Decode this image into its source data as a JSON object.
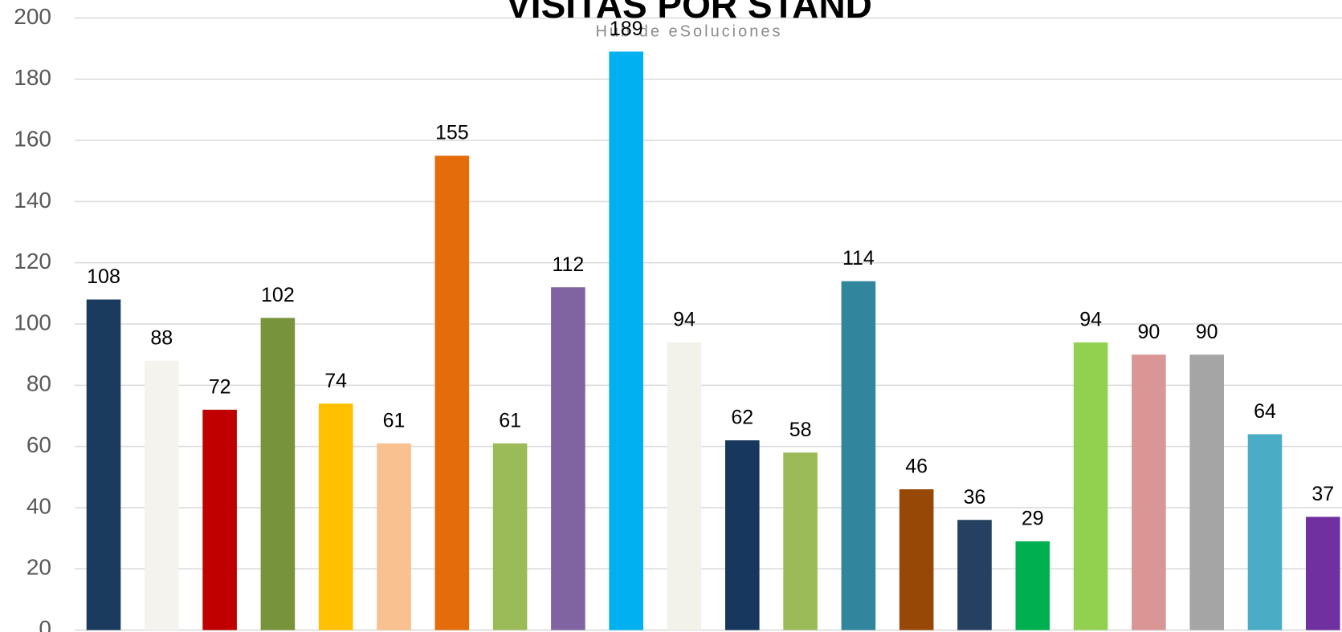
{
  "chart_data": {
    "type": "bar",
    "title": "VISITAS POR STAND",
    "subtitle": "Hub de eSoluciones",
    "values": [
      108,
      88,
      72,
      102,
      74,
      61,
      155,
      61,
      112,
      189,
      94,
      62,
      58,
      114,
      46,
      36,
      29,
      94,
      90,
      90,
      64,
      37
    ],
    "colors": [
      "#1a3a5e",
      "#f5f3ee",
      "#c00000",
      "#77933c",
      "#ffc000",
      "#f9c090",
      "#e46c0a",
      "#9bbb59",
      "#8064a2",
      "#00b0f0",
      "#f2f2ea",
      "#17375e",
      "#9bbb59",
      "#31859c",
      "#974806",
      "#254061",
      "#00b050",
      "#92d050",
      "#d99694",
      "#a5a5a5",
      "#4bacc6",
      "#7030a0"
    ],
    "ylim": [
      0,
      200
    ],
    "yticks": [
      0,
      20,
      40,
      60,
      80,
      100,
      120,
      140,
      160,
      180,
      200
    ],
    "grid": true
  }
}
